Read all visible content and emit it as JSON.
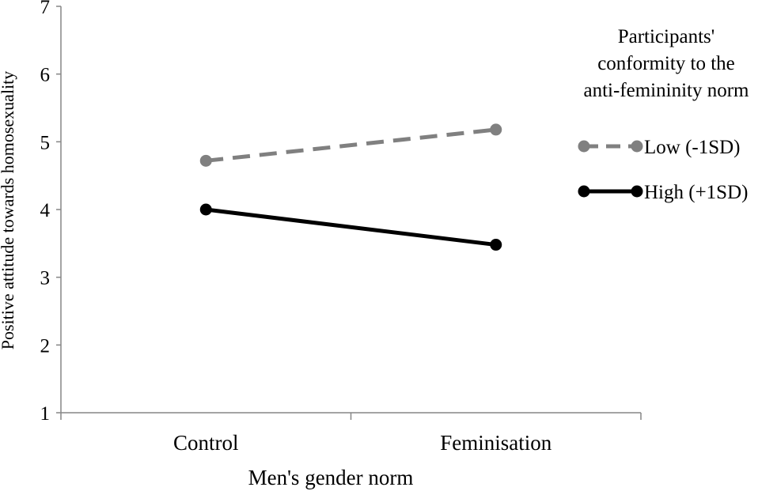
{
  "chart_data": {
    "type": "line",
    "categories": [
      "Control",
      "Feminisation"
    ],
    "xlabel": "Men's gender norm",
    "ylabel": "Positive attitude towards homosexuality",
    "ylim": [
      1,
      7
    ],
    "yticks": [
      "1",
      "2",
      "3",
      "4",
      "5",
      "6",
      "7"
    ],
    "grid": false,
    "legend": {
      "title_lines": [
        "Participants'",
        "conformity to the",
        "anti-femininity norm"
      ],
      "placement": "right"
    },
    "series": [
      {
        "name": "Low (-1SD)",
        "values": [
          4.72,
          5.18
        ],
        "color": "#808080",
        "dash": "dashed"
      },
      {
        "name": "High (+1SD)",
        "values": [
          4.0,
          3.48
        ],
        "color": "#000000",
        "dash": "solid"
      }
    ]
  }
}
